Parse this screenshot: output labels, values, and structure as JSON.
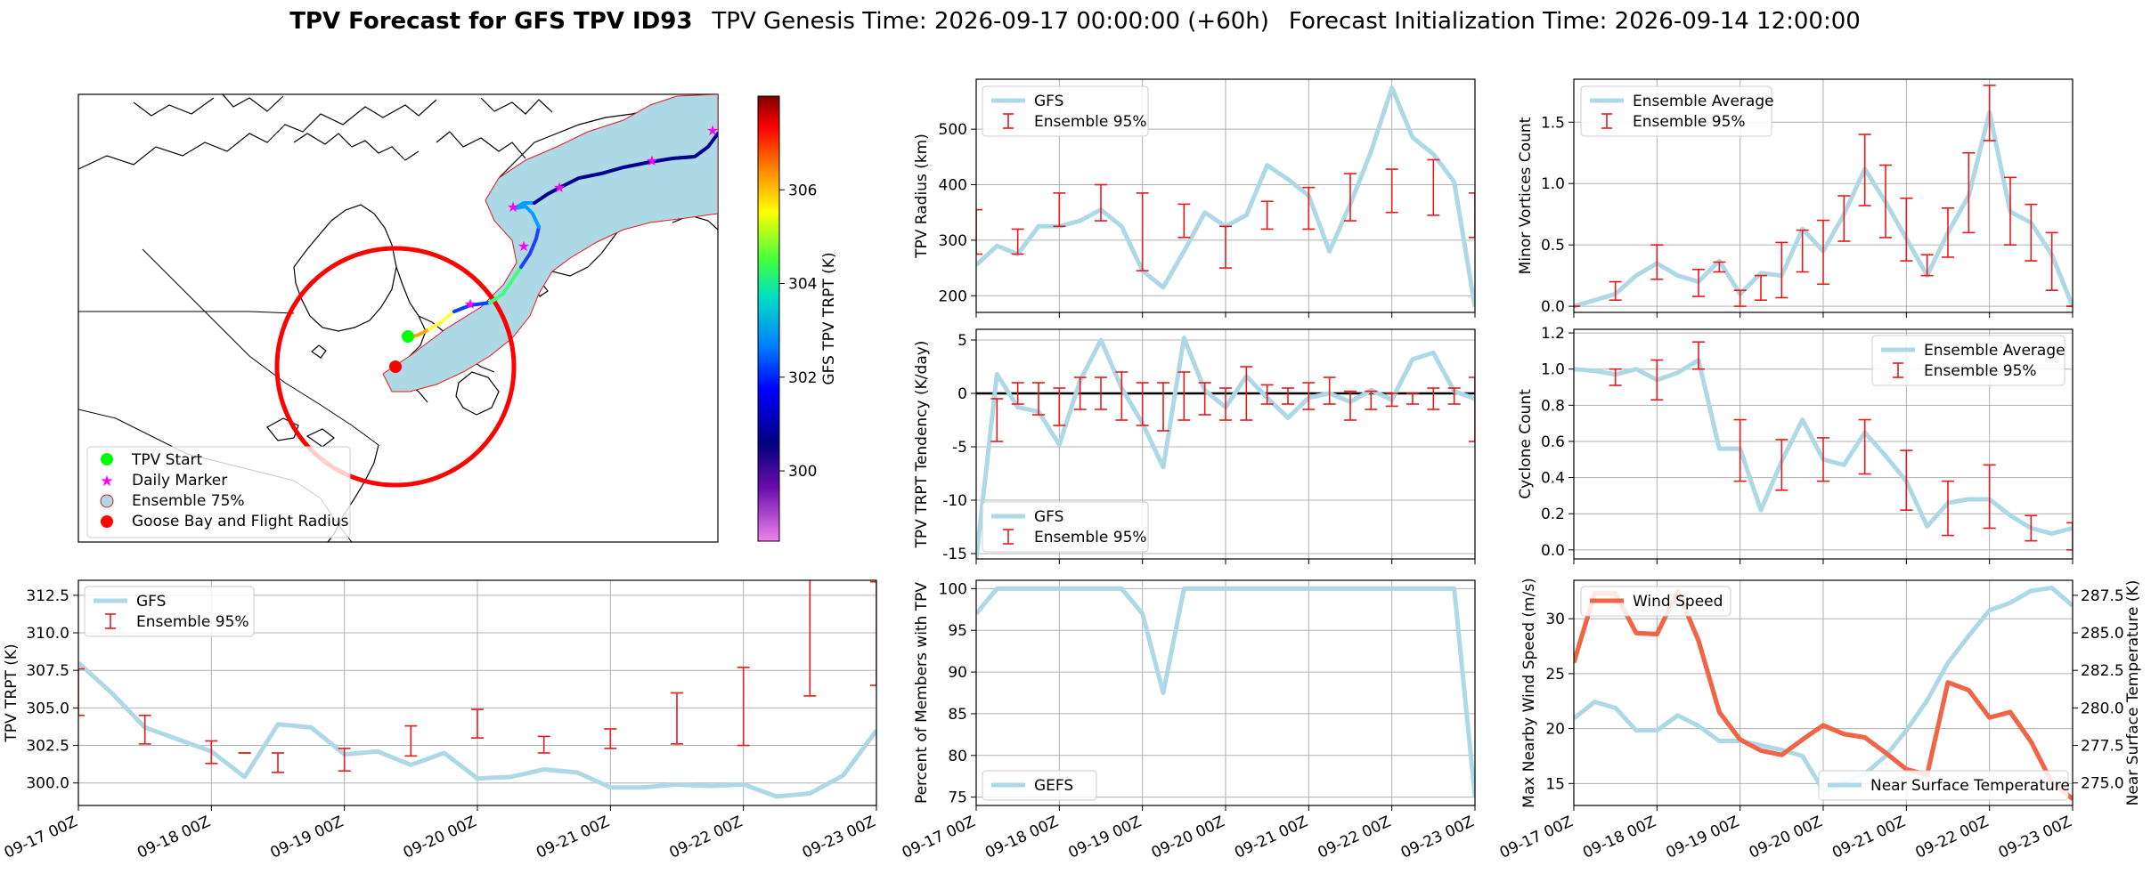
{
  "title": {
    "bold": "TPV Forecast for GFS TPV ID93",
    "genesis": "TPV Genesis Time: 2026-09-17 00:00:00 (+60h)",
    "init": "Forecast Initialization Time: 2026-09-14 12:00:00"
  },
  "x_tick_labels": [
    "09-17 00Z",
    "09-18 00Z",
    "09-19 00Z",
    "09-20 00Z",
    "09-21 00Z",
    "09-22 00Z",
    "09-23 00Z"
  ],
  "colors": {
    "line_blue": "#add8e6",
    "error_red": "#e41a1c",
    "wind_red": "#f26446",
    "temp_blue": "#4169e1"
  },
  "chart_data": [
    {
      "id": "map",
      "type": "map",
      "colorbar": {
        "label": "GFS TPV TRPT (K)",
        "ticks": [
          300,
          302,
          304,
          306
        ],
        "range": [
          298.5,
          308.0
        ]
      },
      "legend": [
        "TPV Start",
        "Daily Marker",
        "Ensemble 75%",
        "Goose Bay and Flight Radius"
      ],
      "track_lonlat_note": "track from Labrador toward Greenland"
    },
    {
      "id": "trpt",
      "type": "line",
      "ylabel": "TPV TRPT (K)",
      "ylim": [
        298.5,
        313.5
      ],
      "yticks": [
        300.0,
        302.5,
        305.0,
        307.5,
        310.0,
        312.5
      ],
      "legend": [
        "GFS",
        "Ensemble 95%"
      ],
      "series_x": [
        0,
        6,
        12,
        18,
        24,
        30,
        36,
        42,
        48,
        54,
        60,
        66,
        72,
        78,
        84,
        90,
        96,
        102,
        108,
        114,
        120,
        126,
        132,
        138,
        144
      ],
      "series_y": [
        308.0,
        306.0,
        303.7,
        302.9,
        302.1,
        300.4,
        303.9,
        303.7,
        301.9,
        302.1,
        301.2,
        302.0,
        300.3,
        300.4,
        300.9,
        300.7,
        299.7,
        299.7,
        299.9,
        299.8,
        299.9,
        299.1,
        299.3,
        300.5,
        303.5
      ],
      "err_x": [
        0,
        12,
        24,
        30,
        36,
        48,
        60,
        72,
        84,
        96,
        108,
        120,
        132,
        144
      ],
      "err_lo": [
        304.5,
        302.6,
        301.3,
        302.0,
        300.7,
        300.8,
        301.8,
        303.0,
        302.0,
        302.3,
        302.6,
        302.5,
        305.8,
        306.5
      ],
      "err_hi": [
        307.6,
        304.5,
        302.8,
        302.0,
        302.0,
        302.3,
        303.8,
        304.9,
        303.1,
        303.6,
        306.0,
        307.7,
        313.6,
        313.4
      ]
    },
    {
      "id": "radius",
      "type": "line",
      "ylabel": "TPV Radius (km)",
      "ylim": [
        170,
        590
      ],
      "yticks": [
        200,
        300,
        400,
        500
      ],
      "legend": [
        "GFS",
        "Ensemble 95%"
      ],
      "series_x": [
        0,
        6,
        12,
        18,
        24,
        30,
        36,
        42,
        48,
        54,
        60,
        66,
        72,
        78,
        84,
        90,
        96,
        102,
        108,
        114,
        120,
        126,
        132,
        138,
        144
      ],
      "series_y": [
        255,
        290,
        275,
        325,
        325,
        335,
        355,
        325,
        245,
        215,
        280,
        350,
        325,
        345,
        435,
        410,
        380,
        280,
        365,
        460,
        575,
        485,
        455,
        405,
        180
      ],
      "err_x": [
        0,
        12,
        24,
        36,
        48,
        60,
        72,
        84,
        96,
        108,
        120,
        132,
        144
      ],
      "err_lo": [
        275,
        275,
        325,
        335,
        245,
        305,
        250,
        320,
        320,
        335,
        350,
        345,
        305
      ],
      "err_hi": [
        355,
        320,
        385,
        400,
        385,
        365,
        325,
        370,
        395,
        420,
        428,
        445,
        385
      ]
    },
    {
      "id": "minor",
      "type": "line",
      "ylabel": "Minor Vortices Count",
      "ylim": [
        -0.05,
        1.85
      ],
      "yticks": [
        0.0,
        0.5,
        1.0,
        1.5
      ],
      "legend": [
        "Ensemble Average",
        "Ensemble 95%"
      ],
      "series_x": [
        0,
        6,
        12,
        18,
        24,
        30,
        36,
        42,
        48,
        54,
        60,
        66,
        72,
        78,
        84,
        90,
        96,
        102,
        108,
        114,
        120,
        126,
        132,
        138,
        144
      ],
      "series_y": [
        0.0,
        0.05,
        0.1,
        0.25,
        0.35,
        0.25,
        0.2,
        0.37,
        0.1,
        0.27,
        0.25,
        0.63,
        0.45,
        0.75,
        1.12,
        0.85,
        0.55,
        0.25,
        0.6,
        0.9,
        1.58,
        0.77,
        0.68,
        0.42,
        0.0
      ],
      "err_x": [
        0,
        12,
        24,
        36,
        42,
        48,
        54,
        60,
        66,
        72,
        78,
        84,
        90,
        96,
        102,
        108,
        114,
        120,
        126,
        132,
        138,
        144
      ],
      "err_lo": [
        0.0,
        0.05,
        0.22,
        0.08,
        0.28,
        0.0,
        0.05,
        0.07,
        0.28,
        0.18,
        0.53,
        0.82,
        0.56,
        0.37,
        0.25,
        0.4,
        0.6,
        1.35,
        0.5,
        0.37,
        0.13,
        0.0
      ],
      "err_hi": [
        0.0,
        0.2,
        0.5,
        0.3,
        0.36,
        0.13,
        0.25,
        0.52,
        0.62,
        0.7,
        0.9,
        1.4,
        1.15,
        0.88,
        0.42,
        0.8,
        1.25,
        1.8,
        1.05,
        0.83,
        0.6,
        0.0
      ]
    },
    {
      "id": "tendency",
      "type": "line",
      "ylabel": "TPV TRPT Tendency (K/day)",
      "ylim": [
        -15.5,
        6.0
      ],
      "yticks": [
        5,
        0,
        -5,
        -10,
        -15
      ],
      "legend": [
        "GFS",
        "Ensemble 95%"
      ],
      "series_x": [
        0,
        6,
        12,
        18,
        24,
        30,
        36,
        42,
        48,
        54,
        60,
        66,
        72,
        78,
        84,
        90,
        96,
        102,
        108,
        114,
        120,
        126,
        132,
        138,
        144
      ],
      "series_y": [
        -15.5,
        1.8,
        -1.3,
        -1.7,
        -4.8,
        1.2,
        5.0,
        0.5,
        -2.8,
        -6.9,
        5.2,
        0.3,
        -1.3,
        1.6,
        -0.4,
        -2.3,
        -0.4,
        0.0,
        -0.8,
        0.3,
        -0.6,
        3.2,
        3.8,
        0.2,
        -0.5
      ],
      "err_x": [
        6,
        12,
        18,
        24,
        30,
        36,
        42,
        48,
        54,
        60,
        66,
        72,
        78,
        84,
        90,
        96,
        102,
        108,
        114,
        120,
        126,
        132,
        138,
        144
      ],
      "err_lo": [
        -4.5,
        -1.0,
        -2.0,
        -3.0,
        -1.5,
        -1.5,
        -2.5,
        -3.0,
        -3.5,
        -2.5,
        -2.0,
        -2.5,
        -2.5,
        -1.0,
        -1.0,
        -1.5,
        -1.0,
        -2.5,
        -1.5,
        -1.2,
        -1.0,
        -1.5,
        -1.0,
        -4.5
      ],
      "err_hi": [
        -0.5,
        1.0,
        1.0,
        0.5,
        1.5,
        1.5,
        2.0,
        1.0,
        1.0,
        2.0,
        1.0,
        0.5,
        2.5,
        0.8,
        0.5,
        1.0,
        1.5,
        0.2,
        0.2,
        0.0,
        0.0,
        0.5,
        0.5,
        1.5
      ]
    },
    {
      "id": "cyclone",
      "type": "line",
      "ylabel": "Cyclone Count",
      "ylim": [
        -0.05,
        1.22
      ],
      "yticks": [
        0.0,
        0.2,
        0.4,
        0.6,
        0.8,
        1.0,
        1.2
      ],
      "legend": [
        "Ensemble Average",
        "Ensemble 95%"
      ],
      "series_x": [
        0,
        6,
        12,
        18,
        24,
        30,
        36,
        42,
        48,
        54,
        60,
        66,
        72,
        78,
        84,
        90,
        96,
        102,
        108,
        114,
        120,
        126,
        132,
        138,
        144
      ],
      "series_y": [
        1.0,
        0.99,
        0.97,
        1.0,
        0.94,
        0.98,
        1.05,
        0.56,
        0.56,
        0.22,
        0.49,
        0.72,
        0.5,
        0.47,
        0.65,
        0.52,
        0.38,
        0.13,
        0.26,
        0.28,
        0.28,
        0.19,
        0.12,
        0.09,
        0.12
      ],
      "err_x": [
        12,
        24,
        36,
        48,
        60,
        72,
        84,
        96,
        108,
        120,
        132,
        144
      ],
      "err_lo": [
        0.91,
        0.83,
        1.0,
        0.38,
        0.33,
        0.38,
        0.42,
        0.22,
        0.08,
        0.12,
        0.05,
        0.0
      ],
      "err_hi": [
        1.0,
        1.05,
        1.15,
        0.72,
        0.61,
        0.62,
        0.72,
        0.55,
        0.38,
        0.47,
        0.19,
        0.15
      ]
    },
    {
      "id": "members",
      "type": "line",
      "ylabel": "Percent of Members with TPV",
      "ylim": [
        74,
        101
      ],
      "yticks": [
        75,
        80,
        85,
        90,
        95,
        100
      ],
      "legend": [
        "GEFS"
      ],
      "series_x": [
        0,
        6,
        12,
        18,
        24,
        30,
        36,
        42,
        48,
        54,
        60,
        66,
        72,
        78,
        84,
        90,
        96,
        102,
        108,
        114,
        120,
        126,
        132,
        138,
        144
      ],
      "series_y": [
        97,
        100,
        100,
        100,
        100,
        100,
        100,
        100,
        97,
        87.5,
        100,
        100,
        100,
        100,
        100,
        100,
        100,
        100,
        100,
        100,
        100,
        100,
        100,
        100,
        75
      ]
    },
    {
      "id": "wind_temp",
      "type": "line",
      "ylabel_left": "Max Nearby Wind Speed (m/s)",
      "ylabel_right": "Near Surface Temperature (K)",
      "ylim_left": [
        13,
        33.5
      ],
      "yticks_left": [
        15,
        20,
        25,
        30
      ],
      "ylim_right": [
        273.5,
        288.5
      ],
      "yticks_right": [
        275.0,
        277.5,
        280.0,
        282.5,
        285.0,
        287.5
      ],
      "legend_left": [
        "Wind Speed"
      ],
      "legend_right": [
        "Near Surface Temperature"
      ],
      "series_x": [
        0,
        6,
        12,
        18,
        24,
        30,
        36,
        42,
        48,
        54,
        60,
        66,
        72,
        78,
        84,
        90,
        96,
        102,
        108,
        114,
        120,
        126,
        132,
        138,
        144
      ],
      "wind": [
        26,
        32.3,
        32.3,
        28.7,
        28.6,
        32.5,
        28.0,
        21.5,
        19.0,
        18.0,
        17.6,
        19.0,
        20.3,
        19.5,
        19.2,
        17.8,
        16.3,
        15.8,
        24.2,
        23.5,
        21.0,
        21.5,
        18.8,
        15.1,
        13.6
      ],
      "temp": [
        279.3,
        280.4,
        280.0,
        278.5,
        278.5,
        279.5,
        278.8,
        277.8,
        277.8,
        277.5,
        277.2,
        276.8,
        274.5,
        275.0,
        275.6,
        276.8,
        278.5,
        280.5,
        283.0,
        284.8,
        286.5,
        287.0,
        287.8,
        288.0,
        286.8
      ]
    }
  ]
}
